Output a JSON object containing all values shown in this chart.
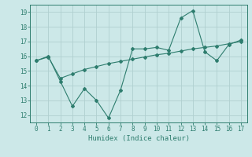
{
  "x": [
    0,
    1,
    2,
    3,
    4,
    5,
    6,
    7,
    8,
    9,
    10,
    11,
    12,
    13,
    14,
    15,
    16,
    17
  ],
  "line1": [
    15.7,
    16.0,
    14.3,
    12.6,
    13.8,
    13.0,
    11.8,
    13.7,
    16.5,
    16.5,
    16.6,
    16.4,
    18.6,
    19.1,
    16.3,
    15.7,
    16.8,
    17.1
  ],
  "line2": [
    15.7,
    15.95,
    14.5,
    14.8,
    15.1,
    15.3,
    15.5,
    15.65,
    15.8,
    15.95,
    16.1,
    16.2,
    16.35,
    16.5,
    16.6,
    16.7,
    16.85,
    17.0
  ],
  "line_color": "#2e7d6e",
  "bg_color": "#cce8e8",
  "grid_color": "#b0d0d0",
  "xlabel": "Humidex (Indice chaleur)",
  "ylim": [
    11.5,
    19.5
  ],
  "xlim": [
    -0.5,
    17.5
  ],
  "yticks": [
    12,
    13,
    14,
    15,
    16,
    17,
    18,
    19
  ],
  "xticks": [
    0,
    1,
    2,
    3,
    4,
    5,
    6,
    7,
    8,
    9,
    10,
    11,
    12,
    13,
    14,
    15,
    16,
    17
  ]
}
